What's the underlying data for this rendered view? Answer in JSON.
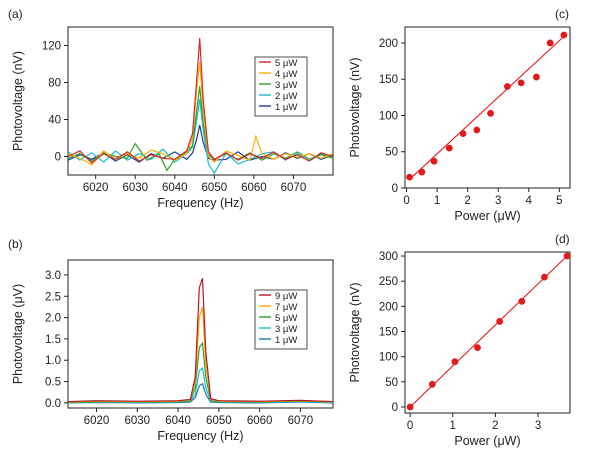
{
  "panels": [
    {
      "id": "a",
      "panel_label": "(a)",
      "type": "line",
      "xlabel": "Frequency (Hz)",
      "ylabel": "Photovoltage (nV)",
      "xlim": [
        6013,
        6080
      ],
      "ylim": [
        -20,
        140
      ],
      "xticks": [
        6020,
        6030,
        6040,
        6050,
        6060,
        6070
      ],
      "yticks": [
        0,
        40,
        80,
        120
      ],
      "legend": "upper-right",
      "series": [
        {
          "name": "5 μW",
          "color": "#d62728",
          "x": [
            6013,
            6016,
            6019,
            6022,
            6025,
            6028,
            6031,
            6034,
            6037,
            6040,
            6043,
            6044.5,
            6045.5,
            6046.3,
            6047.2,
            6048.5,
            6050,
            6053,
            6056,
            6059,
            6062,
            6065,
            6068,
            6071,
            6074,
            6077,
            6080
          ],
          "y": [
            0,
            6,
            -7,
            3,
            -3,
            5,
            -5,
            2,
            -2,
            -3,
            6,
            25,
            80,
            128,
            60,
            5,
            -3,
            4,
            -4,
            3,
            -2,
            5,
            -3,
            2,
            -5,
            4,
            0
          ]
        },
        {
          "name": "4 μW",
          "color": "#ffb000",
          "x": [
            6013,
            6016,
            6019,
            6022,
            6025,
            6028,
            6031,
            6034,
            6037,
            6040,
            6043,
            6044.5,
            6045.5,
            6046.3,
            6047.2,
            6048.5,
            6050,
            6053,
            6056,
            6059,
            6060.5,
            6062,
            6065,
            6068,
            6071,
            6074,
            6077,
            6080
          ],
          "y": [
            3,
            -2,
            -9,
            6,
            -3,
            3,
            -2,
            7,
            3,
            -4,
            3,
            20,
            70,
            102,
            50,
            0,
            -6,
            6,
            1,
            -4,
            22,
            3,
            -3,
            3,
            -1,
            3,
            -2,
            3
          ]
        },
        {
          "name": "3 μW",
          "color": "#2ca02c",
          "x": [
            6013,
            6016,
            6019,
            6022,
            6025,
            6028,
            6030,
            6033,
            6036,
            6038,
            6040,
            6043,
            6044.5,
            6045.5,
            6046.3,
            6047.2,
            6048.5,
            6050,
            6053,
            6056,
            6059,
            6062,
            6065,
            6068,
            6071,
            6074,
            6077,
            6080
          ],
          "y": [
            -2,
            3,
            -5,
            4,
            0,
            -2,
            14,
            -4,
            3,
            -15,
            -3,
            5,
            12,
            48,
            76,
            35,
            2,
            -3,
            3,
            -3,
            4,
            -4,
            3,
            -2,
            5,
            -3,
            2,
            -2
          ]
        },
        {
          "name": "2 μW",
          "color": "#17becf",
          "x": [
            6013,
            6016,
            6019,
            6022,
            6025,
            6028,
            6031,
            6034,
            6037,
            6040,
            6043,
            6044.5,
            6045.5,
            6046.3,
            6047.2,
            6048.5,
            6050,
            6053,
            6056,
            6059,
            6062,
            6065,
            6068,
            6071,
            6074,
            6077,
            6080
          ],
          "y": [
            5,
            -4,
            4,
            -6,
            6,
            -4,
            3,
            -3,
            8,
            -6,
            3,
            10,
            38,
            62,
            28,
            -8,
            -18,
            4,
            -8,
            -3,
            3,
            5,
            -4,
            3,
            -5,
            3,
            -2
          ]
        },
        {
          "name": "1 μW",
          "color": "#1f3a93",
          "x": [
            6013,
            6016,
            6019,
            6022,
            6025,
            6028,
            6031,
            6034,
            6037,
            6040,
            6043,
            6044.5,
            6045.5,
            6046.3,
            6047.2,
            6048.5,
            6050,
            6053,
            6056,
            6059,
            6062,
            6065,
            6068,
            6071,
            6074,
            6077,
            6080
          ],
          "y": [
            -4,
            2,
            -3,
            4,
            -5,
            2,
            -6,
            3,
            -2,
            5,
            -3,
            4,
            18,
            34,
            15,
            -2,
            -4,
            -3,
            5,
            -4,
            0,
            -3,
            4,
            -2,
            3,
            -3,
            2
          ]
        }
      ]
    },
    {
      "id": "b",
      "panel_label": "(b)",
      "type": "line",
      "xlabel": "Frequency (Hz)",
      "ylabel": "Photovoltage (μV)",
      "xlim": [
        6013,
        6078
      ],
      "ylim": [
        -0.12,
        3.35
      ],
      "xticks": [
        6020,
        6030,
        6040,
        6050,
        6060,
        6070
      ],
      "yticks": [
        0.0,
        0.5,
        1.0,
        1.5,
        2.0,
        2.5,
        3.0
      ],
      "ytick_labels": [
        "0.0",
        "0.5",
        "1.0",
        "1.5",
        "2.0",
        "2.5",
        "3.0"
      ],
      "legend": "upper-right",
      "series": [
        {
          "name": "9 μW",
          "color": "#b2182b",
          "x": [
            6013,
            6020,
            6030,
            6040,
            6043,
            6044.2,
            6045.2,
            6046,
            6046.8,
            6048,
            6050,
            6060,
            6070,
            6078
          ],
          "y": [
            0.03,
            0.05,
            0.04,
            0.05,
            0.08,
            0.6,
            2.7,
            2.92,
            1.2,
            0.1,
            0.05,
            0.04,
            0.06,
            0.03
          ]
        },
        {
          "name": "7 μW",
          "color": "#ffa500",
          "x": [
            6013,
            6020,
            6030,
            6040,
            6043,
            6044.2,
            6045.2,
            6046,
            6046.8,
            6048,
            6050,
            6060,
            6070,
            6078
          ],
          "y": [
            0.02,
            0.04,
            0.03,
            0.04,
            0.07,
            0.5,
            2.0,
            2.25,
            0.9,
            0.08,
            0.04,
            0.03,
            0.05,
            0.02
          ]
        },
        {
          "name": "5 μW",
          "color": "#2ca02c",
          "x": [
            6013,
            6020,
            6030,
            6040,
            6043,
            6044.2,
            6045.2,
            6046,
            6046.8,
            6048,
            6050,
            6060,
            6070,
            6078
          ],
          "y": [
            0.01,
            0.03,
            0.02,
            0.03,
            0.05,
            0.35,
            1.3,
            1.4,
            0.6,
            0.06,
            0.03,
            0.02,
            0.04,
            0.02
          ]
        },
        {
          "name": "3 μW",
          "color": "#17becf",
          "x": [
            6013,
            6020,
            6030,
            6040,
            6043,
            6044.2,
            6045.2,
            6046,
            6046.8,
            6048,
            6050,
            6060,
            6070,
            6078
          ],
          "y": [
            0.0,
            0.02,
            0.01,
            0.02,
            0.04,
            0.2,
            0.75,
            0.82,
            0.35,
            0.04,
            0.02,
            0.01,
            0.03,
            0.01
          ]
        },
        {
          "name": "1 μW",
          "color": "#1f77b4",
          "x": [
            6013,
            6020,
            6030,
            6040,
            6043,
            6044.2,
            6045.2,
            6046,
            6046.8,
            6048,
            6050,
            6060,
            6070,
            6078
          ],
          "y": [
            0.0,
            0.01,
            0.0,
            0.01,
            0.02,
            0.12,
            0.4,
            0.45,
            0.2,
            0.02,
            0.01,
            0.0,
            0.02,
            0.0
          ]
        }
      ]
    },
    {
      "id": "c",
      "panel_label": "(c)",
      "type": "scatter",
      "xlabel": "Power (μW)",
      "ylabel": "Photovoltage (nV)",
      "xlim": [
        -0.05,
        5.35
      ],
      "ylim": [
        0,
        222
      ],
      "xticks": [
        0,
        1,
        2,
        3,
        4,
        5
      ],
      "yticks": [
        0,
        50,
        100,
        150,
        200
      ],
      "color": "#e31a1c",
      "points": {
        "x": [
          0.1,
          0.5,
          0.9,
          1.4,
          1.85,
          2.3,
          2.75,
          3.3,
          3.75,
          4.25,
          4.7,
          5.15
        ],
        "y": [
          15,
          22,
          37,
          55,
          75,
          80,
          103,
          140,
          145,
          153,
          200,
          211
        ]
      },
      "fit": {
        "x": [
          0.1,
          5.2
        ],
        "y": [
          12,
          211
        ]
      }
    },
    {
      "id": "d",
      "panel_label": "(d)",
      "type": "scatter",
      "xlabel": "Power (μW)",
      "ylabel": "Photovoltage (nV)",
      "xlim": [
        -0.12,
        3.75
      ],
      "ylim": [
        -12,
        308
      ],
      "xticks": [
        0,
        1,
        2,
        3
      ],
      "yticks": [
        0,
        50,
        100,
        150,
        200,
        250,
        300
      ],
      "color": "#e31a1c",
      "points": {
        "x": [
          0.0,
          0.52,
          1.05,
          1.58,
          2.1,
          2.62,
          3.15,
          3.68
        ],
        "y": [
          0,
          45,
          90,
          118,
          170,
          210,
          258,
          300
        ]
      },
      "fit": {
        "x": [
          0.0,
          3.68
        ],
        "y": [
          0,
          300
        ]
      }
    }
  ]
}
